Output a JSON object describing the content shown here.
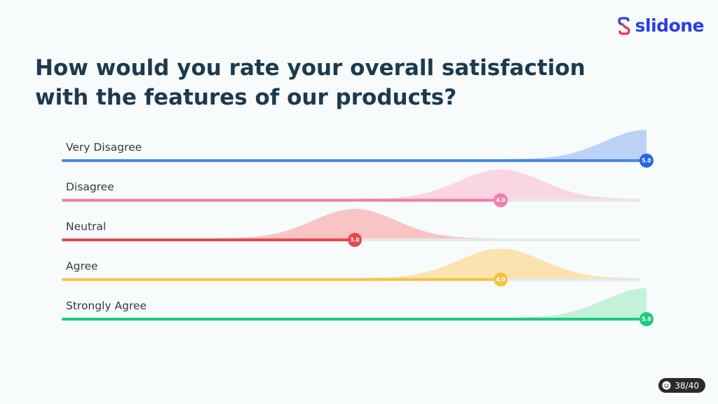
{
  "brand": {
    "name": "slidone"
  },
  "page": {
    "counter": "38/40"
  },
  "question": "How would you rate your overall satisfaction with the features of our products?",
  "colors": {
    "background": "#f7fbfc",
    "title": "#1c3a4f",
    "track": "#e8e8e8",
    "brand": "#2a3ee0"
  },
  "chart_data": {
    "type": "bar",
    "orientation": "horizontal",
    "title": "",
    "xlabel": "",
    "ylabel": "",
    "xlim": [
      1,
      5
    ],
    "grid": false,
    "categories": [
      "Very Disagree",
      "Disagree",
      "Neutral",
      "Agree",
      "Strongly Agree"
    ],
    "values": [
      5.0,
      4.0,
      3.0,
      4.0,
      5.0
    ],
    "value_labels": [
      "5.0",
      "4.0",
      "3.0",
      "4.0",
      "5.0"
    ],
    "series_colors": [
      "#4a86e8",
      "#ee7fa6",
      "#e8474a",
      "#f2c443",
      "#1ccb7f"
    ],
    "fill_colors": [
      "#bcd1f6",
      "#fad6e3",
      "#f9c4c4",
      "#fbe3b0",
      "#c3f1da"
    ],
    "marker_colors": [
      "#2567e0",
      "#ee7fa6",
      "#e8474a",
      "#f2c443",
      "#1ccb7f"
    ]
  }
}
